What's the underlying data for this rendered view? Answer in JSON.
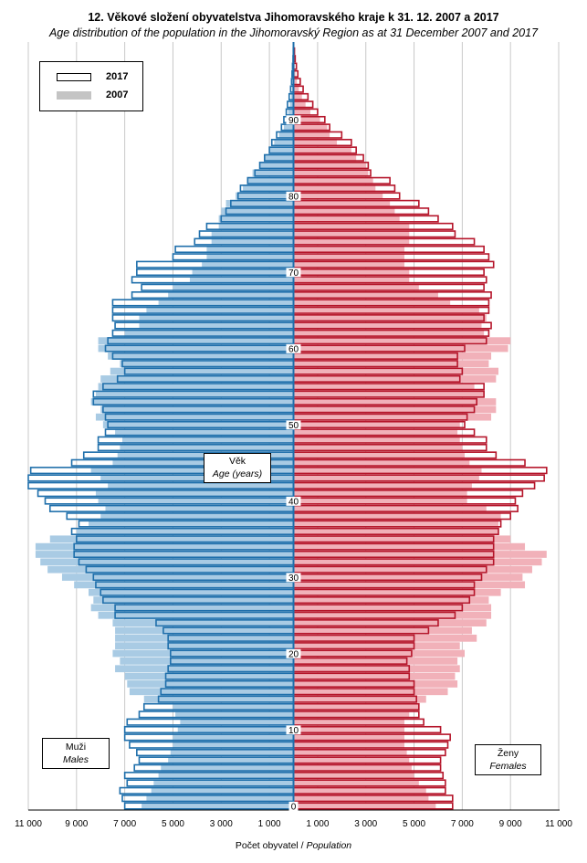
{
  "title_cz": "12. Věkové složení obyvatelstva Jihomoravského kraje k 31. 12. 2007 a 2017",
  "title_en": "Age distribution of the population in the Jihomoravský Region as at 31 December 2007 and 2017",
  "legend": {
    "y2017": "2017",
    "y2007": "2007"
  },
  "age_box": {
    "cz": "Věk",
    "en": "Age (years)"
  },
  "males_box": {
    "cz": "Muži",
    "en": "Males"
  },
  "females_box": {
    "cz": "Ženy",
    "en": "Females"
  },
  "xlabel_cz": "Počet obyvatel / ",
  "xlabel_en": "Population",
  "colors": {
    "male_fill_2007": "#a9cbe4",
    "male_2017": "#1f6fab",
    "female_fill_2007": "#f1b1b9",
    "female_2017": "#b5152a",
    "grid": "#c8c8c8"
  },
  "chart_data": {
    "type": "population-pyramid",
    "x_tick_labels": [
      "11 000",
      "9 000",
      "7 000",
      "5 000",
      "3 000",
      "1 000",
      "1 000",
      "3 000",
      "5 000",
      "7 000",
      "9 000",
      "11 000"
    ],
    "y_tick_labels": [
      "0",
      "10",
      "20",
      "30",
      "40",
      "50",
      "60",
      "70",
      "80",
      "90"
    ],
    "xlim": [
      -11000,
      11000
    ],
    "ages": [
      0,
      1,
      2,
      3,
      4,
      5,
      6,
      7,
      8,
      9,
      10,
      11,
      12,
      13,
      14,
      15,
      16,
      17,
      18,
      19,
      20,
      21,
      22,
      23,
      24,
      25,
      26,
      27,
      28,
      29,
      30,
      31,
      32,
      33,
      34,
      35,
      36,
      37,
      38,
      39,
      40,
      41,
      42,
      43,
      44,
      45,
      46,
      47,
      48,
      49,
      50,
      51,
      52,
      53,
      54,
      55,
      56,
      57,
      58,
      59,
      60,
      61,
      62,
      63,
      64,
      65,
      66,
      67,
      68,
      69,
      70,
      71,
      72,
      73,
      74,
      75,
      76,
      77,
      78,
      79,
      80,
      81,
      82,
      83,
      84,
      85,
      86,
      87,
      88,
      89,
      90,
      91,
      92,
      93,
      94,
      95,
      96,
      97,
      98,
      99
    ],
    "series": [
      {
        "name": "2017",
        "sex": "Muži",
        "values": [
          7000,
          7100,
          7200,
          6900,
          7000,
          6600,
          6400,
          6500,
          6800,
          7000,
          7000,
          6900,
          6400,
          6200,
          5600,
          5500,
          5300,
          5300,
          5200,
          5100,
          5100,
          5200,
          5200,
          5400,
          5700,
          7400,
          7400,
          7900,
          8000,
          8200,
          8300,
          8600,
          8900,
          9100,
          9100,
          9000,
          9200,
          8900,
          9400,
          10100,
          10300,
          10600,
          11000,
          11000,
          10900,
          9200,
          8700,
          8100,
          8100,
          7800,
          7700,
          7800,
          7900,
          8300,
          8300,
          7900,
          7300,
          7000,
          7100,
          7500,
          7800,
          7700,
          7500,
          7400,
          7500,
          7500,
          7500,
          6700,
          6300,
          6700,
          6500,
          6500,
          5000,
          4900,
          4100,
          3900,
          3600,
          3000,
          2800,
          2600,
          2300,
          2200,
          1900,
          1600,
          1400,
          1200,
          1000,
          900,
          700,
          500,
          400,
          300,
          250,
          180,
          120,
          80,
          60,
          40,
          20,
          10
        ]
      },
      {
        "name": "2007",
        "sex": "Muži",
        "values": [
          6300,
          6100,
          5900,
          5800,
          5600,
          5500,
          5200,
          5100,
          5000,
          5000,
          4800,
          4700,
          4900,
          5000,
          6200,
          6800,
          6900,
          7000,
          7400,
          7200,
          7500,
          7400,
          7400,
          7400,
          7500,
          8100,
          8400,
          8300,
          8500,
          9100,
          9600,
          10200,
          10500,
          10700,
          10700,
          10100,
          9000,
          8500,
          8000,
          7800,
          8100,
          8200,
          7700,
          8000,
          8400,
          7500,
          7300,
          7200,
          7100,
          7400,
          7900,
          8200,
          8000,
          8400,
          8200,
          8100,
          8000,
          7600,
          7200,
          7700,
          8100,
          8100,
          7000,
          6400,
          6400,
          6100,
          5600,
          5200,
          5000,
          4300,
          4200,
          3800,
          3600,
          3600,
          3400,
          3400,
          3100,
          3100,
          3000,
          2800,
          2400,
          2100,
          1900,
          1700,
          1400,
          1200,
          1000,
          800,
          600,
          400,
          300,
          220,
          150,
          100,
          60,
          40,
          25,
          15,
          8,
          4
        ]
      },
      {
        "name": "2017",
        "sex": "Ženy",
        "values": [
          6600,
          6600,
          6300,
          6300,
          6200,
          6100,
          6100,
          6300,
          6400,
          6500,
          6100,
          5400,
          5200,
          5200,
          5100,
          5000,
          5000,
          4800,
          4800,
          4700,
          4900,
          5000,
          5000,
          5600,
          6000,
          6700,
          7000,
          7300,
          7500,
          7500,
          7800,
          8000,
          8300,
          8300,
          8300,
          8300,
          8500,
          8600,
          9000,
          9300,
          9200,
          9500,
          10000,
          10400,
          10500,
          9600,
          8400,
          8000,
          8000,
          7500,
          7100,
          7200,
          7500,
          7600,
          7900,
          7900,
          6900,
          7000,
          6800,
          6800,
          7100,
          8000,
          8100,
          8200,
          7900,
          8100,
          8100,
          8200,
          7900,
          8000,
          7900,
          8300,
          8100,
          7900,
          7500,
          6700,
          6600,
          6000,
          5600,
          5200,
          4400,
          4200,
          4000,
          3200,
          3100,
          2900,
          2600,
          2400,
          2000,
          1500,
          1300,
          1000,
          800,
          600,
          400,
          280,
          180,
          120,
          70,
          40
        ]
      },
      {
        "name": "2007",
        "sex": "Ženy",
        "values": [
          5900,
          5600,
          5500,
          5200,
          5000,
          4900,
          4800,
          4700,
          4600,
          4600,
          4600,
          4600,
          4800,
          5200,
          5500,
          6400,
          6800,
          6700,
          6900,
          6800,
          7100,
          6900,
          7600,
          7400,
          8000,
          8200,
          8200,
          8100,
          8600,
          9600,
          9500,
          9900,
          10300,
          10500,
          9600,
          9000,
          8500,
          8500,
          8600,
          8000,
          7200,
          7200,
          7400,
          7700,
          7800,
          7300,
          7100,
          7000,
          6900,
          6800,
          6900,
          8200,
          8400,
          8400,
          7900,
          7500,
          8400,
          8500,
          8100,
          8200,
          8900,
          9000,
          7900,
          7800,
          8000,
          7700,
          6500,
          6000,
          5200,
          4800,
          4800,
          4600,
          4600,
          4600,
          4800,
          4800,
          4800,
          4400,
          4200,
          4000,
          3700,
          3400,
          3300,
          3100,
          3000,
          2600,
          2400,
          1800,
          1500,
          1400,
          1100,
          700,
          500,
          350,
          220,
          140,
          80,
          50,
          25,
          10
        ]
      }
    ]
  }
}
